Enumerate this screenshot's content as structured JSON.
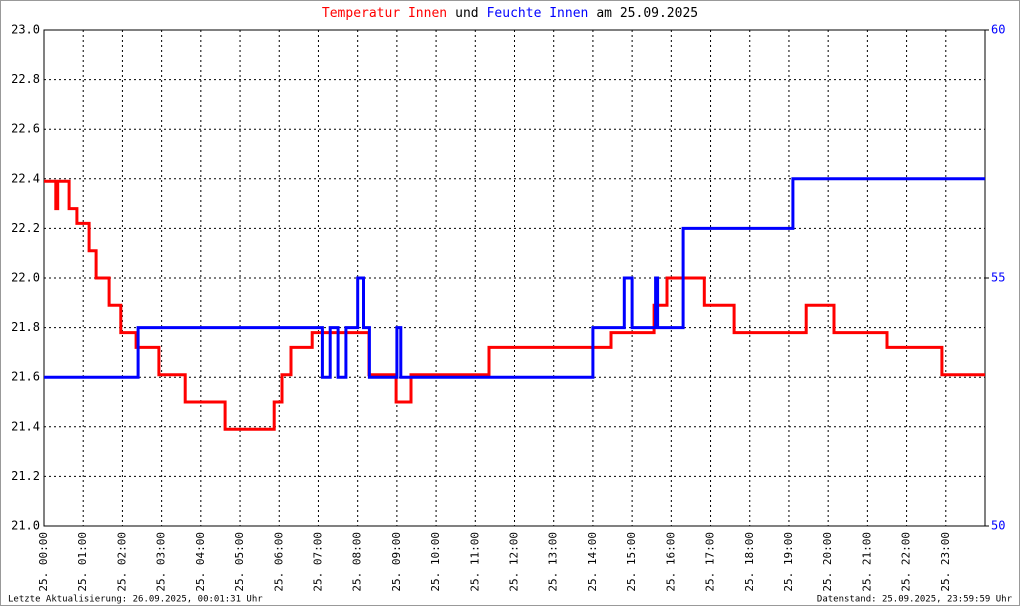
{
  "chart_data": {
    "type": "line",
    "title": [
      {
        "text": "Temperatur Innen",
        "color": "#ff0000"
      },
      {
        "text": "und",
        "color": "#000000"
      },
      {
        "text": "Feuchte Innen",
        "color": "#0000ff"
      },
      {
        "text": "am 25.09.2025",
        "color": "#000000"
      }
    ],
    "footer_left": "Letzte Aktualisierung: 26.09.2025, 00:01:31 Uhr",
    "footer_right": "Datenstand: 25.09.2025, 23:59:59 Uhr",
    "xlim": [
      0,
      24
    ],
    "xticks": [
      {
        "value": 0,
        "label": "25. 00:00"
      },
      {
        "value": 1,
        "label": "25. 01:00"
      },
      {
        "value": 2,
        "label": "25. 02:00"
      },
      {
        "value": 3,
        "label": "25. 03:00"
      },
      {
        "value": 4,
        "label": "25. 04:00"
      },
      {
        "value": 5,
        "label": "25. 05:00"
      },
      {
        "value": 6,
        "label": "25. 06:00"
      },
      {
        "value": 7,
        "label": "25. 07:00"
      },
      {
        "value": 8,
        "label": "25. 08:00"
      },
      {
        "value": 9,
        "label": "25. 09:00"
      },
      {
        "value": 10,
        "label": "25. 10:00"
      },
      {
        "value": 11,
        "label": "25. 11:00"
      },
      {
        "value": 12,
        "label": "25. 12:00"
      },
      {
        "value": 13,
        "label": "25. 13:00"
      },
      {
        "value": 14,
        "label": "25. 14:00"
      },
      {
        "value": 15,
        "label": "25. 15:00"
      },
      {
        "value": 16,
        "label": "25. 16:00"
      },
      {
        "value": 17,
        "label": "25. 17:00"
      },
      {
        "value": 18,
        "label": "25. 18:00"
      },
      {
        "value": 19,
        "label": "25. 19:00"
      },
      {
        "value": 20,
        "label": "25. 20:00"
      },
      {
        "value": 21,
        "label": "25. 21:00"
      },
      {
        "value": 22,
        "label": "25. 22:00"
      },
      {
        "value": 23,
        "label": "25. 23:00"
      }
    ],
    "ylim": [
      21,
      23
    ],
    "yticks": [
      {
        "value": 21,
        "label": "21.0"
      },
      21.2,
      21.4,
      21.6,
      21.8,
      {
        "value": 22,
        "label": "22.0"
      },
      22.2,
      22.4,
      22.6,
      22.8,
      {
        "value": 23,
        "label": "23.0"
      }
    ],
    "y2lim": [
      50,
      60
    ],
    "y2ticks": [
      50,
      55,
      60
    ],
    "y2color": "#0000ff",
    "grid": true,
    "series": [
      {
        "name": "Temperatur Innen",
        "color": "#ff0000",
        "x": [
          0,
          0.3,
          0.3,
          0.35,
          0.35,
          0.64,
          0.64,
          0.84,
          0.84,
          1.15,
          1.15,
          1.33,
          1.33,
          1.66,
          1.66,
          1.96,
          1.96,
          2.35,
          2.35,
          2.93,
          2.93,
          3.6,
          3.6,
          4.62,
          4.62,
          5.87,
          5.87,
          6.07,
          6.07,
          6.3,
          6.3,
          6.84,
          6.84,
          8.29,
          8.29,
          8.98,
          8.98,
          9.36,
          9.36,
          11.35,
          11.35,
          14.46,
          14.46,
          15.56,
          15.56,
          15.89,
          15.89,
          16.84,
          16.84,
          17.6,
          17.6,
          19.44,
          19.44,
          20.15,
          20.15,
          21.5,
          21.5,
          22.9,
          22.9,
          24
        ],
        "values": [
          22.39,
          22.39,
          22.28,
          22.28,
          22.39,
          22.39,
          22.28,
          22.28,
          22.22,
          22.22,
          22.11,
          22.11,
          22.0,
          22.0,
          21.89,
          21.89,
          21.78,
          21.78,
          21.72,
          21.72,
          21.61,
          21.61,
          21.5,
          21.5,
          21.39,
          21.39,
          21.5,
          21.5,
          21.61,
          21.61,
          21.72,
          21.72,
          21.78,
          21.78,
          21.61,
          21.61,
          21.5,
          21.5,
          21.61,
          21.61,
          21.72,
          21.72,
          21.78,
          21.78,
          21.89,
          21.89,
          22.0,
          22.0,
          21.89,
          21.89,
          21.78,
          21.78,
          21.89,
          21.89,
          21.78,
          21.78,
          21.72,
          21.72,
          21.61,
          21.61
        ]
      },
      {
        "name": "Feuchte Innen",
        "color": "#0000ff",
        "axis": "y2",
        "x": [
          0,
          2.4,
          2.4,
          7.1,
          7.1,
          7.3,
          7.3,
          7.5,
          7.5,
          7.7,
          7.7,
          8.0,
          8.0,
          8.15,
          8.15,
          8.3,
          8.3,
          9.0,
          9.0,
          9.1,
          9.1,
          14.0,
          14.0,
          14.8,
          14.8,
          15.0,
          15.0,
          15.6,
          15.6,
          15.65,
          15.65,
          16.3,
          16.3,
          19.1,
          19.1,
          24
        ],
        "values": [
          53,
          53,
          54,
          54,
          53,
          53,
          54,
          54,
          53,
          53,
          54,
          54,
          55,
          55,
          54,
          54,
          53,
          53,
          54,
          54,
          53,
          53,
          54,
          54,
          55,
          55,
          54,
          54,
          55,
          55,
          54,
          54,
          56,
          56,
          57,
          57
        ]
      }
    ]
  }
}
